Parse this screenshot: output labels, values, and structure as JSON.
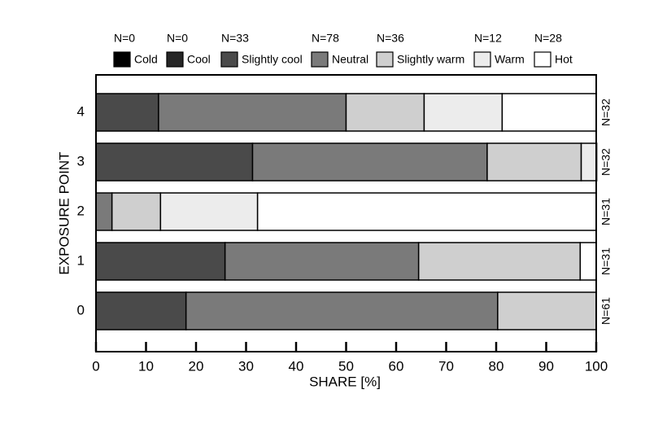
{
  "chart_data": {
    "type": "stacked-barh",
    "xlabel": "SHARE [%]",
    "ylabel": "EXPOSURE POINT",
    "categories": [
      "0",
      "1",
      "2",
      "3",
      "4"
    ],
    "bar_labels": [
      "N=61",
      "N=31",
      "N=31",
      "N=32",
      "N=32"
    ],
    "legend_counts": [
      "N=0",
      "N=0",
      "N=33",
      "N=78",
      "N=36",
      "N=12",
      "N=28"
    ],
    "series": [
      {
        "name": "Cold",
        "color": "#000000",
        "values": [
          0,
          0,
          0,
          0,
          0
        ]
      },
      {
        "name": "Cool",
        "color": "#262626",
        "values": [
          0,
          0,
          0,
          0,
          0
        ]
      },
      {
        "name": "Slightly cool",
        "color": "#4a4a4a",
        "values": [
          18.0,
          25.8,
          0,
          31.3,
          12.5
        ]
      },
      {
        "name": "Neutral",
        "color": "#7a7a7a",
        "values": [
          62.3,
          38.7,
          3.2,
          46.9,
          37.5
        ]
      },
      {
        "name": "Slightly warm",
        "color": "#cfcfcf",
        "values": [
          19.7,
          32.3,
          9.7,
          18.8,
          15.6
        ]
      },
      {
        "name": "Warm",
        "color": "#ececec",
        "values": [
          0,
          0,
          19.4,
          3.1,
          15.6
        ]
      },
      {
        "name": "Hot",
        "color": "#ffffff",
        "values": [
          0,
          3.2,
          67.7,
          0,
          18.8
        ]
      }
    ],
    "xlim": [
      0,
      100
    ],
    "xticks": [
      0,
      10,
      20,
      30,
      40,
      50,
      60,
      70,
      80,
      90,
      100
    ],
    "legend": "top"
  }
}
